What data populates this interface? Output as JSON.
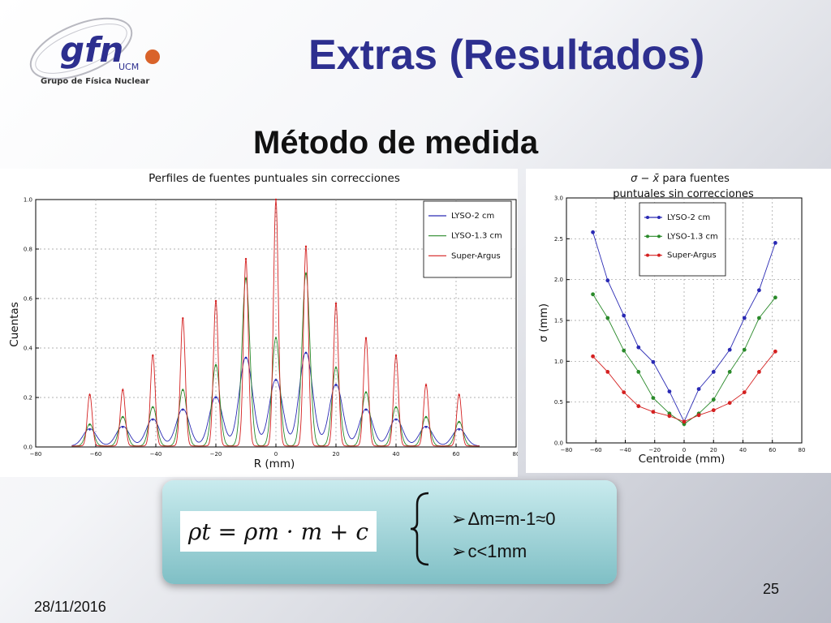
{
  "slide": {
    "logo": {
      "text": "gfn",
      "suffix": "UCM",
      "caption": "Grupo de Física Nuclear"
    },
    "title": "Extras (Resultados)",
    "subtitle": "Método de medida",
    "formula": "ρt = ρm · m + c",
    "bullets": [
      "Δm=m-1≈0",
      "c<1mm"
    ],
    "date": "28/11/2016",
    "page": "25"
  },
  "colors": {
    "blue": "#2a2ab4",
    "green": "#2a8a2a",
    "red": "#d42020",
    "title": "#2d2f8f"
  },
  "chart_data": [
    {
      "type": "line",
      "title": "Perfiles de fuentes puntuales sin correcciones",
      "xlabel": "R (mm)",
      "ylabel": "Cuentas",
      "xlim": [
        -80,
        80
      ],
      "ylim": [
        0,
        1.0
      ],
      "xticks": [
        "−80",
        "−60",
        "−40",
        "−20",
        "0",
        "20",
        "40",
        "60",
        "80"
      ],
      "yticks": [
        "0.0",
        "0.2",
        "0.4",
        "0.6",
        "0.8",
        "1.0"
      ],
      "grid": true,
      "legend": "top-right",
      "peak_positions": [
        -62,
        -51,
        -41,
        -31,
        -20,
        -10,
        0,
        10,
        20,
        30,
        40,
        50,
        61
      ],
      "series": [
        {
          "name": "LYSO-2 cm",
          "color": "blue",
          "peaks": [
            0.07,
            0.08,
            0.11,
            0.15,
            0.2,
            0.36,
            0.27,
            0.38,
            0.25,
            0.15,
            0.11,
            0.08,
            0.07
          ]
        },
        {
          "name": "LYSO-1.3 cm",
          "color": "green",
          "peaks": [
            0.09,
            0.12,
            0.16,
            0.23,
            0.33,
            0.68,
            0.44,
            0.7,
            0.32,
            0.22,
            0.16,
            0.12,
            0.1
          ]
        },
        {
          "name": "Super-Argus",
          "color": "red",
          "peaks": [
            0.21,
            0.23,
            0.37,
            0.52,
            0.59,
            0.76,
            1.0,
            0.81,
            0.58,
            0.44,
            0.37,
            0.25,
            0.21
          ]
        }
      ]
    },
    {
      "type": "line",
      "title_math": "σ − x̄",
      "title": "para fuentes",
      "title_line2": "puntuales sin correcciones",
      "xlabel": "Centroide (mm)",
      "ylabel": "σ (mm)",
      "xlim": [
        -80,
        80
      ],
      "ylim": [
        0,
        3.0
      ],
      "xticks": [
        "−80",
        "−60",
        "−40",
        "−20",
        "0",
        "20",
        "40",
        "60",
        "80"
      ],
      "yticks": [
        "0.0",
        "0.5",
        "1.0",
        "1.5",
        "2.0",
        "2.5",
        "3.0"
      ],
      "grid": true,
      "legend": "top-center",
      "x": [
        -62,
        -52,
        -41,
        -31,
        -21,
        -10,
        0,
        10,
        20,
        31,
        41,
        51,
        62
      ],
      "series": [
        {
          "name": "LYSO-2 cm",
          "color": "blue",
          "values": [
            2.58,
            1.99,
            1.56,
            1.17,
            0.99,
            0.63,
            0.26,
            0.66,
            0.87,
            1.14,
            1.53,
            1.87,
            2.45
          ]
        },
        {
          "name": "LYSO-1.3 cm",
          "color": "green",
          "values": [
            1.82,
            1.53,
            1.13,
            0.87,
            0.55,
            0.36,
            0.23,
            0.36,
            0.53,
            0.87,
            1.14,
            1.53,
            1.78
          ]
        },
        {
          "name": "Super-Argus",
          "color": "red",
          "values": [
            1.06,
            0.87,
            0.62,
            0.45,
            0.38,
            0.33,
            0.26,
            0.34,
            0.4,
            0.49,
            0.62,
            0.87,
            1.12
          ]
        }
      ]
    }
  ]
}
